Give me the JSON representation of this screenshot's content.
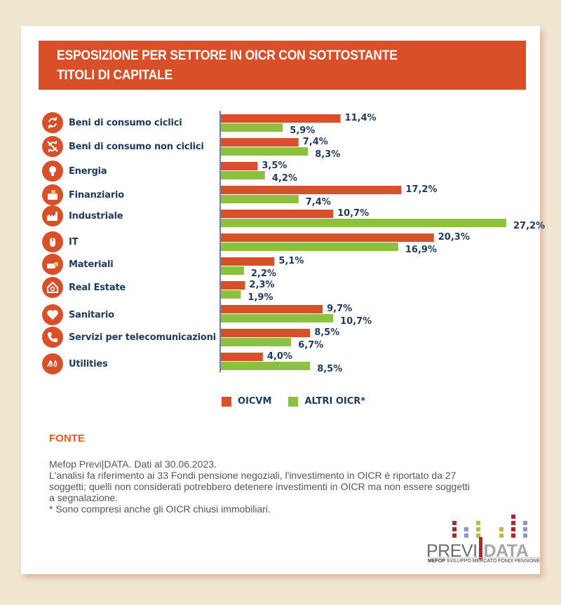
{
  "title": "ESPOSIZIONE PER SETTORE IN OICR CON SOTTOSTANTE TITOLI DI CAPITALE",
  "title_lines": [
    "ESPOSIZIONE PER SETTORE IN OICR CON SOTTOSTANTE",
    "TITOLI DI CAPITALE"
  ],
  "colors": {
    "oicvm": "#d94f2a",
    "altri": "#8dc03f",
    "label": "#1f3a5f",
    "title_bg": "#d94f2a",
    "fonte": "#f2561d"
  },
  "categories": [
    {
      "label": "Beni di consumo ciclici",
      "icon": "cycle-arrows-icon"
    },
    {
      "label": "Beni di consumo non ciclici",
      "icon": "crossed-cycle-arrows-icon"
    },
    {
      "label": "Energia",
      "icon": "light-bulb-icon"
    },
    {
      "label": "Finanziario",
      "icon": "wallet-icon"
    },
    {
      "label": "Industriale",
      "icon": "factory-icon"
    },
    {
      "label": "IT",
      "icon": "computer-mouse-icon"
    },
    {
      "label": "Materiali",
      "icon": "materials-icon"
    },
    {
      "label": "Real Estate",
      "icon": "house-search-icon"
    },
    {
      "label": "Sanitario",
      "icon": "heart-icon"
    },
    {
      "label": "Servizi per telecomunicazioni",
      "icon": "phone-icon"
    },
    {
      "label": "Utilities",
      "icon": "utilities-icon"
    }
  ],
  "chart_data": {
    "type": "bar",
    "orientation": "horizontal",
    "title": "ESPOSIZIONE PER SETTORE IN OICR CON SOTTOSTANTE TITOLI DI CAPITALE",
    "xlabel": "",
    "ylabel": "",
    "categories": [
      "Beni di consumo ciclici",
      "Beni di consumo non ciclici",
      "Energia",
      "Finanziario",
      "Industriale",
      "IT",
      "Materiali",
      "Real Estate",
      "Sanitario",
      "Servizi per telecomunicazioni",
      "Utilities"
    ],
    "series": [
      {
        "name": "OICVM",
        "values": [
          11.4,
          7.4,
          3.5,
          17.2,
          10.7,
          20.3,
          5.1,
          2.3,
          9.7,
          8.5,
          4.0
        ],
        "labels": [
          "11,4%",
          "7,4%",
          "3,5%",
          "17,2%",
          "10,7%",
          "20,3%",
          "5,1%",
          "2,3%",
          "9,7%",
          "8,5%",
          "4,0%"
        ]
      },
      {
        "name": "ALTRI OICR*",
        "values": [
          5.9,
          8.3,
          4.2,
          7.4,
          27.2,
          16.9,
          2.2,
          1.9,
          10.7,
          6.7,
          8.5
        ],
        "labels": [
          "5,9%",
          "8,3%",
          "4,2%",
          "7,4%",
          "27,2%",
          "16,9%",
          "2,2%",
          "1,9%",
          "10,7%",
          "6,7%",
          "8,5%"
        ]
      }
    ],
    "xlim": [
      0,
      27.2
    ],
    "grid": false,
    "legend": "bottom",
    "unit": "%"
  },
  "legend": [
    {
      "label": "OICVM"
    },
    {
      "label": "ALTRI OICR*"
    }
  ],
  "fonte": {
    "title": "FONTE",
    "lines": [
      "Mefop Previ|DATA. Dati al 30.06.2023.",
      "L'analisi fa riferimento ai 33 Fondi pensione negoziali, l'investimento in OICR è riportato da 27",
      "soggetti; quelli non considerati potrebbero detenere investimenti in OICR ma non essere soggetti",
      "a segnalazione.",
      "* Sono compresi anche gli OICR chiusi immobiliari."
    ]
  },
  "logo": {
    "previ": "PREVI",
    "data": "DATA",
    "sub_bold": "MEFOP",
    "sub_text": " SVILUPPO MERCATO FONDI PENSIONE",
    "square_colors": [
      "#a82a2e",
      "#8b95c9",
      "#c2b845"
    ]
  }
}
